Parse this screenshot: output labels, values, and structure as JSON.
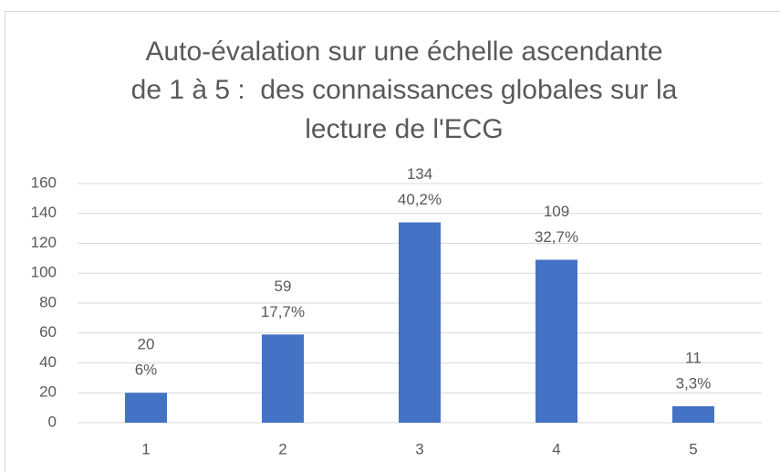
{
  "chart_data": {
    "type": "bar",
    "title": [
      "Auto-évalation sur une échelle ascendante",
      "de 1 à 5 :  des connaissances globales sur la",
      "lecture de l'ECG"
    ],
    "categories": [
      "1",
      "2",
      "3",
      "4",
      "5"
    ],
    "values": [
      20,
      59,
      134,
      109,
      11
    ],
    "percentages": [
      6,
      17.7,
      40.2,
      32.7,
      3.3
    ],
    "percentage_labels": [
      "6%",
      "17,7%",
      "40,2%",
      "32,7%",
      "3,3%"
    ],
    "color": "#4472c4",
    "ylim": [
      0,
      160
    ],
    "yticks": [
      0,
      20,
      40,
      60,
      80,
      100,
      120,
      140,
      160
    ],
    "grid": true
  }
}
